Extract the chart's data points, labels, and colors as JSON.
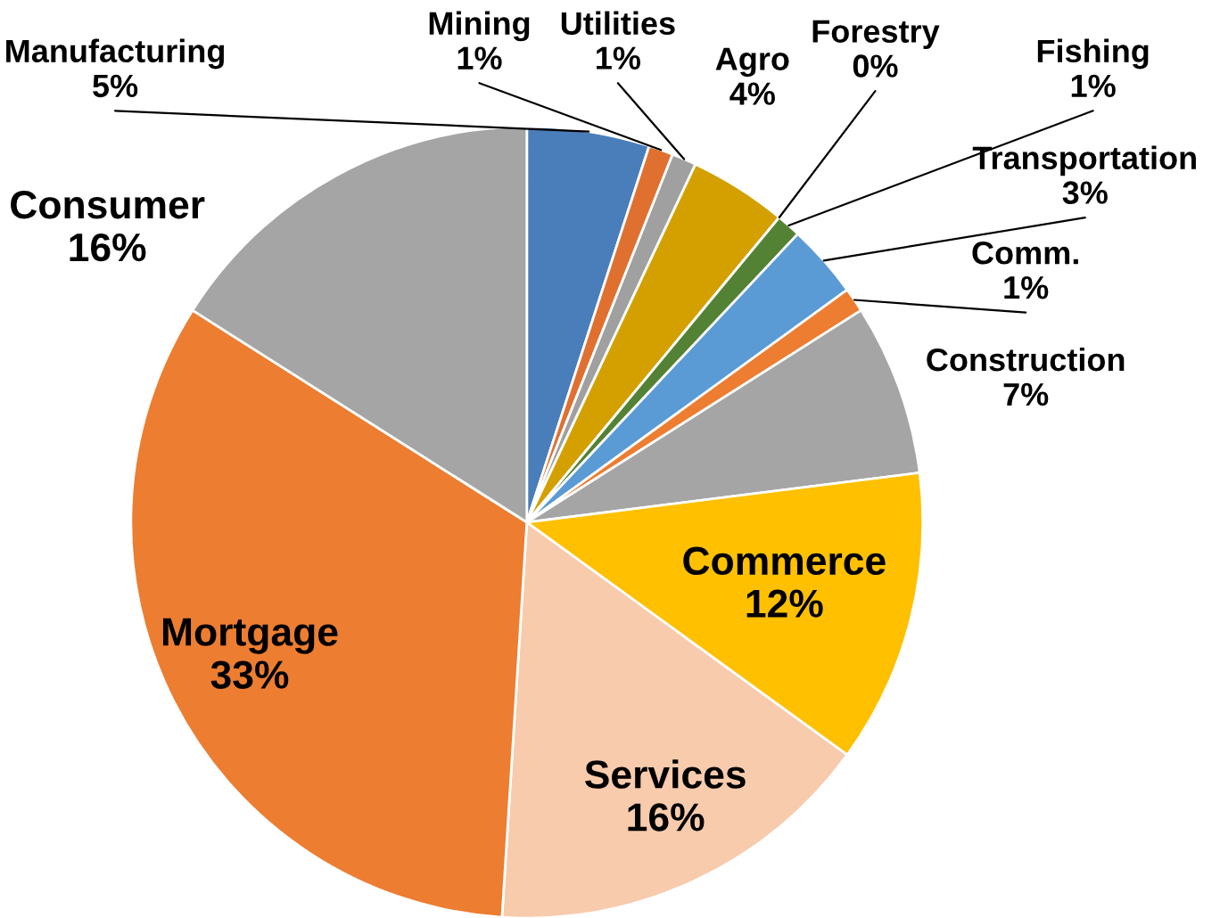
{
  "chart_data": {
    "type": "pie",
    "categories": [
      "Manufacturing",
      "Mining",
      "Utilities",
      "Agro",
      "Forestry",
      "Fishing",
      "Transportation",
      "Comm.",
      "Construction",
      "Commerce",
      "Services",
      "Mortgage",
      "Consumer"
    ],
    "values": [
      5,
      1,
      1,
      4,
      0,
      1,
      3,
      1,
      7,
      12,
      16,
      33,
      16
    ],
    "colors": [
      "#4a7ebb",
      "#e07030",
      "#a0a0a0",
      "#d4a000",
      "#2f5597",
      "#548235",
      "#5b9bd5",
      "#ed7d31",
      "#a5a5a5",
      "#ffc000",
      "#f8cbad",
      "#ed7d31",
      "#a5a5a5"
    ],
    "value_labels": [
      "5%",
      "1%",
      "1%",
      "4%",
      "0%",
      "1%",
      "3%",
      "1%",
      "7%",
      "12%",
      "16%",
      "33%",
      "16%"
    ]
  }
}
